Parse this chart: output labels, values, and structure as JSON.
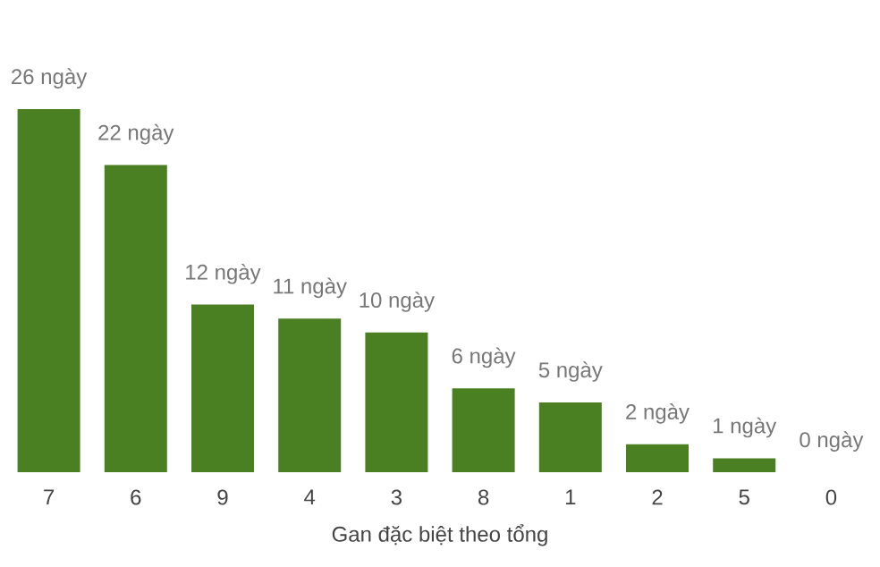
{
  "chart_data": {
    "type": "bar",
    "xlabel": "Gan đặc biệt theo tổng",
    "categories": [
      "7",
      "6",
      "9",
      "4",
      "3",
      "8",
      "1",
      "2",
      "5",
      "0"
    ],
    "values": [
      26,
      22,
      12,
      11,
      10,
      6,
      5,
      2,
      1,
      0
    ],
    "value_labels": [
      "26 ngày",
      "22 ngày",
      "12 ngày",
      "11 ngày",
      "10 ngày",
      "6 ngày",
      "5 ngày",
      "2 ngày",
      "1 ngày",
      "0 ngày"
    ],
    "color": "#4a7f22"
  }
}
